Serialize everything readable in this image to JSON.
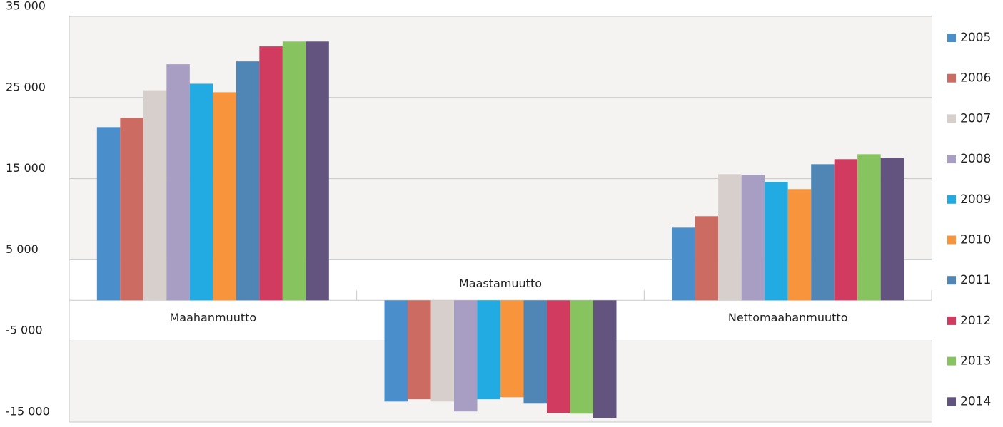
{
  "chart_data": {
    "type": "bar",
    "categories": [
      "Maahanmuutto",
      "Maastamuutto",
      "Nettomaahanmuutto"
    ],
    "series": [
      {
        "name": "2005",
        "color": "#4a8fcb",
        "values": [
          21350,
          -12480,
          8960
        ]
      },
      {
        "name": "2006",
        "color": "#cc6b62",
        "values": [
          22500,
          -12200,
          10370
        ]
      },
      {
        "name": "2007",
        "color": "#d6cfcb",
        "values": [
          25900,
          -12480,
          15550
        ]
      },
      {
        "name": "2008",
        "color": "#a89dc2",
        "values": [
          29100,
          -13700,
          15470
        ]
      },
      {
        "name": "2009",
        "color": "#21abe2",
        "values": [
          26700,
          -12200,
          14590
        ]
      },
      {
        "name": "2010",
        "color": "#f7943c",
        "values": [
          25650,
          -11950,
          13710
        ]
      },
      {
        "name": "2011",
        "color": "#4f86b5",
        "values": [
          29450,
          -12740,
          16780
        ]
      },
      {
        "name": "2012",
        "color": "#d13b5f",
        "values": [
          31300,
          -13880,
          17400
        ]
      },
      {
        "name": "2013",
        "color": "#87c45f",
        "values": [
          31900,
          -13970,
          18010
        ]
      },
      {
        "name": "2014",
        "color": "#62547f",
        "values": [
          31900,
          -14500,
          17570
        ]
      }
    ],
    "ylim": [
      -15000,
      35000
    ],
    "yticks": [
      {
        "value": -15000,
        "label": "-15 000"
      },
      {
        "value": -5000,
        "label": "-5 000"
      },
      {
        "value": 5000,
        "label": "5 000"
      },
      {
        "value": 15000,
        "label": "15 000"
      },
      {
        "value": 25000,
        "label": "25 000"
      },
      {
        "value": 35000,
        "label": "35 000"
      }
    ],
    "grid": true,
    "legend": "right"
  }
}
